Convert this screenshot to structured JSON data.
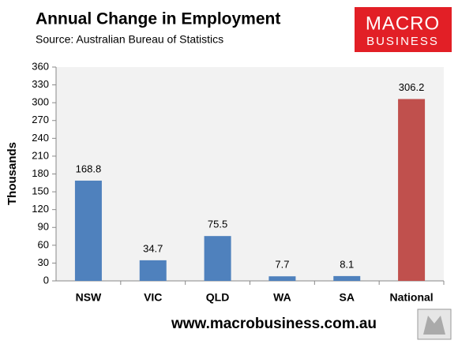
{
  "chart_data": {
    "type": "bar",
    "title": "Annual Change in Employment",
    "subtitle": "Source: Australian Bureau of Statistics",
    "logo": [
      "MACRO",
      "BUSINESS"
    ],
    "footer": "www.macrobusiness.com.au",
    "y_label": "Thousands",
    "categories": [
      "NSW",
      "VIC",
      "QLD",
      "WA",
      "SA",
      "National"
    ],
    "values": [
      168.8,
      34.7,
      75.5,
      7.7,
      8.1,
      306.2
    ],
    "colors": [
      "#4f81bd",
      "#4f81bd",
      "#4f81bd",
      "#4f81bd",
      "#4f81bd",
      "#c0504d"
    ],
    "ylim": [
      0,
      360
    ],
    "yticks": [
      0,
      30,
      60,
      90,
      120,
      150,
      180,
      210,
      240,
      270,
      300,
      330,
      360
    ],
    "grid": false
  }
}
